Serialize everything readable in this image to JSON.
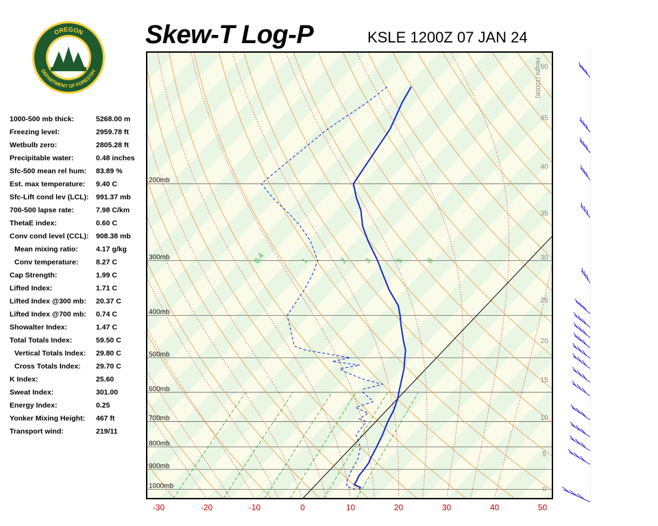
{
  "header": {
    "title": "Skew-T Log-P",
    "station": "KSLE 1200Z 07 JAN 24"
  },
  "logo": {
    "text_top": "OREGON",
    "text_bottom": "DEPARTMENT OF FORESTRY",
    "colors": {
      "ring": "#1f5a2e",
      "inner": "#f4d03f",
      "trees": "#1f5a2e"
    }
  },
  "stats": [
    {
      "label": "1000-500 mb thick:",
      "value": "5268.00 m"
    },
    {
      "label": "Freezing level:",
      "value": "2959.78 ft"
    },
    {
      "label": "Wetbulb zero:",
      "value": "2805.28 ft"
    },
    {
      "label": "Precipitable water:",
      "value": "0.48 inches"
    },
    {
      "label": "Sfc-500 mean rel hum:",
      "value": "83.89 %"
    },
    {
      "label": "Est. max temperature:",
      "value": "9.40 C"
    },
    {
      "label": "Sfc-Lift cond lev (LCL):",
      "value": "991.37 mb"
    },
    {
      "label": "700-500 lapse rate:",
      "value": "7.98 C/km"
    },
    {
      "label": "ThetaE index:",
      "value": "0.60 C"
    },
    {
      "label": "Conv cond level (CCL):",
      "value": "908.38 mb"
    },
    {
      "label": "Mean mixing ratio:",
      "value": "4.17 g/kg",
      "indent": true
    },
    {
      "label": "Conv temperature:",
      "value": "8.27 C",
      "indent": true
    },
    {
      "label": "Cap Strength:",
      "value": "1.99 C"
    },
    {
      "label": "Lifted Index:",
      "value": "1.71 C"
    },
    {
      "label": "Lifted Index @300 mb:",
      "value": "20.37 C"
    },
    {
      "label": "Lifted Index @700 mb:",
      "value": "0.74 C"
    },
    {
      "label": "Showalter Index:",
      "value": "1.47 C"
    },
    {
      "label": "Total Totals Index:",
      "value": "59.50 C"
    },
    {
      "label": "Vertical Totals Index:",
      "value": "29.80 C",
      "indent": true
    },
    {
      "label": "Cross Totals Index:",
      "value": "29.70 C",
      "indent": true
    },
    {
      "label": "K Index:",
      "value": "25.60"
    },
    {
      "label": "Sweat Index:",
      "value": "301.00"
    },
    {
      "label": "Energy Index:",
      "value": "0.25"
    },
    {
      "label": "Yonker Mixing Height:",
      "value": "467 ft"
    },
    {
      "label": "Transport wind:",
      "value": "219/11"
    }
  ],
  "chart_data": {
    "type": "line",
    "title": "Skew-T Log-P",
    "subtitle": "KSLE 1200Z 07 JAN 24",
    "x_axis": {
      "range": [
        -30,
        50
      ],
      "ticks": [
        -30,
        -20,
        -10,
        0,
        10,
        20,
        30,
        40,
        50
      ],
      "units": "C"
    },
    "pressure_axis": {
      "range": [
        1050,
        100
      ],
      "scale": "log",
      "labels": [
        "200mb",
        "300mb",
        "400mb",
        "500mb",
        "600mb",
        "700mb",
        "800mb",
        "900mb",
        "1000mb"
      ],
      "levels": [
        200,
        300,
        400,
        500,
        600,
        700,
        800,
        900,
        1000
      ]
    },
    "height_axis": {
      "label": "Height (1000ft)",
      "ticks": [
        0,
        5,
        10,
        15,
        20,
        25,
        30,
        35,
        40,
        45,
        50
      ]
    },
    "mixing_ratio_labels": [
      "0.4",
      "1",
      "2",
      "3",
      "5",
      "8"
    ],
    "mixing_ratio_values": [
      0.4,
      1,
      2,
      3,
      5,
      8
    ],
    "series": [
      {
        "color": "#1428d0",
        "style": "solid",
        "points": [
          [
            1000,
            10.0
          ],
          [
            990,
            9.8
          ],
          [
            975,
            8.0
          ],
          [
            955,
            7.7
          ],
          [
            930,
            7.2
          ],
          [
            900,
            7.0
          ],
          [
            870,
            6.7
          ],
          [
            850,
            6.2
          ],
          [
            800,
            5.2
          ],
          [
            750,
            4.0
          ],
          [
            700,
            2.5
          ],
          [
            660,
            1.5
          ],
          [
            620,
            0.0
          ],
          [
            600,
            -1.0
          ],
          [
            560,
            -3.0
          ],
          [
            530,
            -4.6
          ],
          [
            500,
            -6.6
          ],
          [
            480,
            -8.0
          ],
          [
            460,
            -10.0
          ],
          [
            420,
            -14.0
          ],
          [
            400,
            -16.0
          ],
          [
            380,
            -18.3
          ],
          [
            350,
            -23.3
          ],
          [
            320,
            -28.1
          ],
          [
            300,
            -31.5
          ],
          [
            270,
            -37.5
          ],
          [
            250,
            -41.5
          ],
          [
            230,
            -45.0
          ],
          [
            215,
            -48.5
          ],
          [
            200,
            -51.8
          ],
          [
            180,
            -53.0
          ],
          [
            150,
            -55.0
          ],
          [
            130,
            -57.8
          ],
          [
            120,
            -59.0
          ]
        ]
      },
      {
        "color": "#1428d0",
        "style": "dashed",
        "points": [
          [
            1000,
            9.2
          ],
          [
            985,
            6.8
          ],
          [
            960,
            5.8
          ],
          [
            940,
            5.4
          ],
          [
            900,
            4.5
          ],
          [
            870,
            4.0
          ],
          [
            850,
            3.6
          ],
          [
            800,
            1.8
          ],
          [
            750,
            -1.5
          ],
          [
            700,
            -2.0
          ],
          [
            690,
            -4.0
          ],
          [
            670,
            -3.2
          ],
          [
            650,
            -7.0
          ],
          [
            630,
            -4.5
          ],
          [
            600,
            -8.5
          ],
          [
            590,
            -9.0
          ],
          [
            575,
            -6.0
          ],
          [
            560,
            -11.0
          ],
          [
            550,
            -13.5
          ],
          [
            540,
            -16.0
          ],
          [
            530,
            -18.0
          ],
          [
            520,
            -14.5
          ],
          [
            510,
            -21.0
          ],
          [
            500,
            -18.0
          ],
          [
            480,
            -29.0
          ],
          [
            470,
            -32.0
          ],
          [
            400,
            -39.5
          ],
          [
            350,
            -41.0
          ],
          [
            320,
            -42.5
          ],
          [
            300,
            -44.0
          ],
          [
            270,
            -49.5
          ],
          [
            250,
            -54.5
          ],
          [
            235,
            -59.0
          ],
          [
            215,
            -66.0
          ],
          [
            200,
            -71.0
          ],
          [
            180,
            -70.0
          ],
          [
            150,
            -68.0
          ],
          [
            130,
            -65.0
          ],
          [
            120,
            -64.0
          ]
        ]
      }
    ]
  }
}
